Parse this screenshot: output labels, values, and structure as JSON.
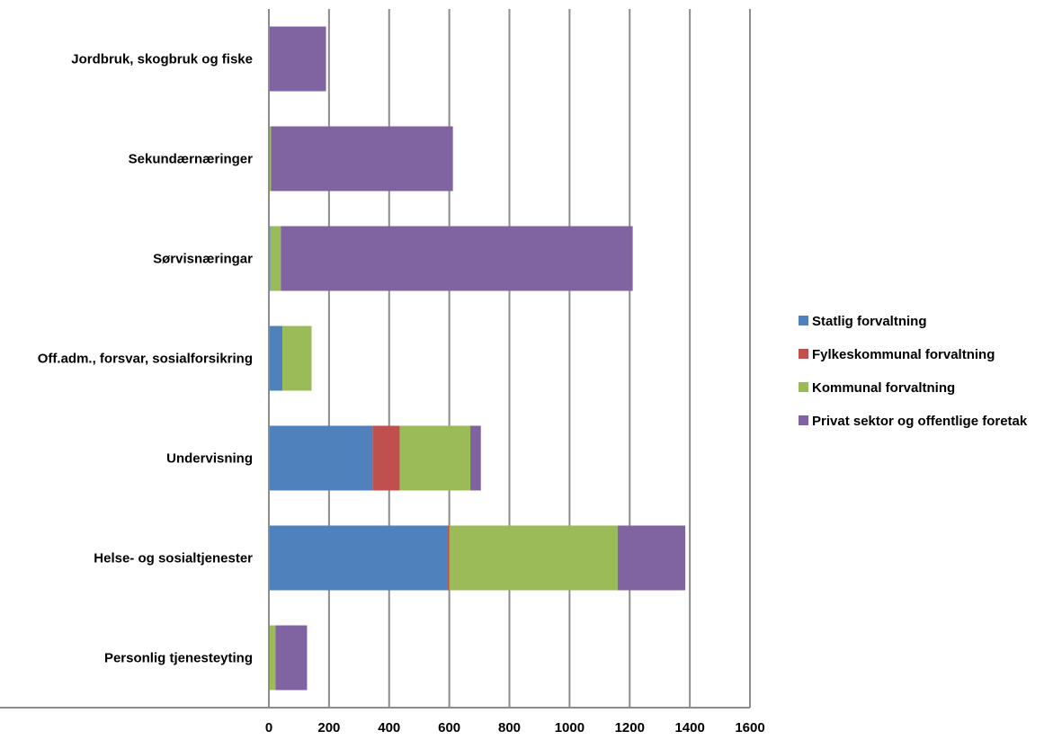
{
  "chart_data": {
    "type": "bar",
    "orientation": "horizontal",
    "stacked": true,
    "title": "",
    "xlabel": "",
    "ylabel": "",
    "xlim": [
      0,
      1600
    ],
    "x_ticks": [
      0,
      200,
      400,
      600,
      800,
      1000,
      1200,
      1400,
      1600
    ],
    "grid": true,
    "legend_position": "right",
    "categories": [
      "Jordbruk, skogbruk og fiske",
      "Sekundærnæringer",
      "Sørvisnæringar",
      "Off.adm., forsvar, sosialforsikring",
      "Undervisning",
      "Helse- og sosialtjenester",
      "Personlig tjenesteyting"
    ],
    "series": [
      {
        "name": "Statlig forvaltning",
        "color": "#4F81BD",
        "values": [
          0,
          2,
          5,
          45,
          345,
          595,
          2
        ]
      },
      {
        "name": "Fylkeskommunal forvaltning",
        "color": "#C0504D",
        "values": [
          0,
          0,
          0,
          0,
          90,
          5,
          0
        ]
      },
      {
        "name": "Kommunal forvaltning",
        "color": "#9BBB59",
        "values": [
          0,
          5,
          35,
          97,
          235,
          560,
          20
        ]
      },
      {
        "name": "Privat sektor og offentlige foretak",
        "color": "#8064A2",
        "values": [
          190,
          605,
          1170,
          0,
          35,
          225,
          105
        ]
      }
    ]
  }
}
